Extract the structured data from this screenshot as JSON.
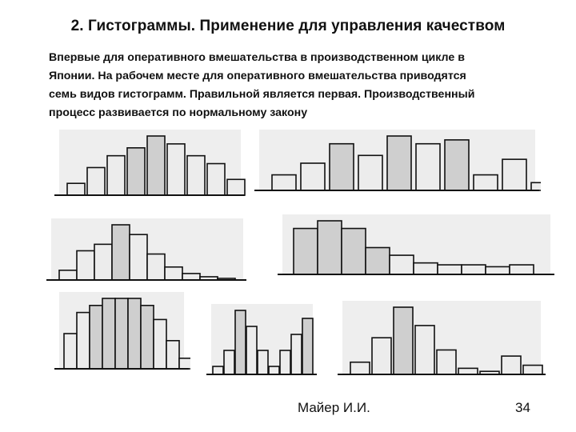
{
  "title": "2. Гистограммы. Применение для управления качеством",
  "paragraph_lines": [
    "Впервые для оперативного вмешательства в производственном цикле в",
    "Японии. На рабочем месте для оперативного вмешательства приводятся",
    "семь видов гистограмм. Правильной является первая. Производственный",
    "процесс развивается по нормальному закону"
  ],
  "footer": {
    "author": "Майер И.И.",
    "page": "34"
  },
  "colors": {
    "panel_background": "#eeeeee",
    "bar_light": "#ececec",
    "bar_dark": "#cfcfcf",
    "outline": "#111111"
  },
  "chart_data": [
    {
      "type": "bar",
      "name": "normal",
      "values": [
        3,
        7,
        10,
        12,
        15,
        13,
        10,
        8,
        4,
        2
      ],
      "shades": [
        0,
        0,
        0,
        1,
        1,
        0,
        0,
        0,
        0,
        0
      ]
    },
    {
      "type": "bar",
      "name": "comb",
      "values": [
        4,
        7,
        12,
        9,
        14,
        12,
        13,
        4,
        8,
        2
      ],
      "shades": [
        0,
        0,
        1,
        0,
        1,
        0,
        1,
        0,
        0,
        0
      ]
    },
    {
      "type": "bar",
      "name": "positive-skew",
      "values": [
        3,
        9,
        11,
        17,
        14,
        8,
        4,
        2,
        1,
        0.5
      ],
      "shades": [
        0,
        0,
        0,
        1,
        0,
        0,
        0,
        0,
        0,
        0
      ]
    },
    {
      "type": "bar",
      "name": "cliff",
      "values": [
        12,
        14,
        12,
        7,
        5,
        3,
        2.5,
        2.5,
        2,
        2.5
      ],
      "shades": [
        1,
        1,
        1,
        1,
        0,
        0,
        0,
        0,
        0,
        0
      ]
    },
    {
      "type": "bar",
      "name": "plateau",
      "values": [
        5,
        8,
        9,
        10,
        10,
        10,
        9,
        7,
        4,
        1.5
      ],
      "shades": [
        0,
        0,
        1,
        1,
        1,
        1,
        1,
        0,
        0,
        0
      ]
    },
    {
      "type": "bar",
      "name": "twin-peak",
      "values": [
        1,
        3,
        8,
        6,
        3,
        1,
        3,
        5,
        7
      ],
      "shades": [
        0,
        0,
        1,
        0,
        0,
        0,
        0,
        0,
        1
      ]
    },
    {
      "type": "bar",
      "name": "isolated-island",
      "values": [
        2,
        6,
        11,
        8,
        4,
        1,
        0.5,
        3,
        1.5
      ],
      "shades": [
        0,
        0,
        1,
        0,
        0,
        0,
        0,
        0,
        0
      ]
    }
  ]
}
